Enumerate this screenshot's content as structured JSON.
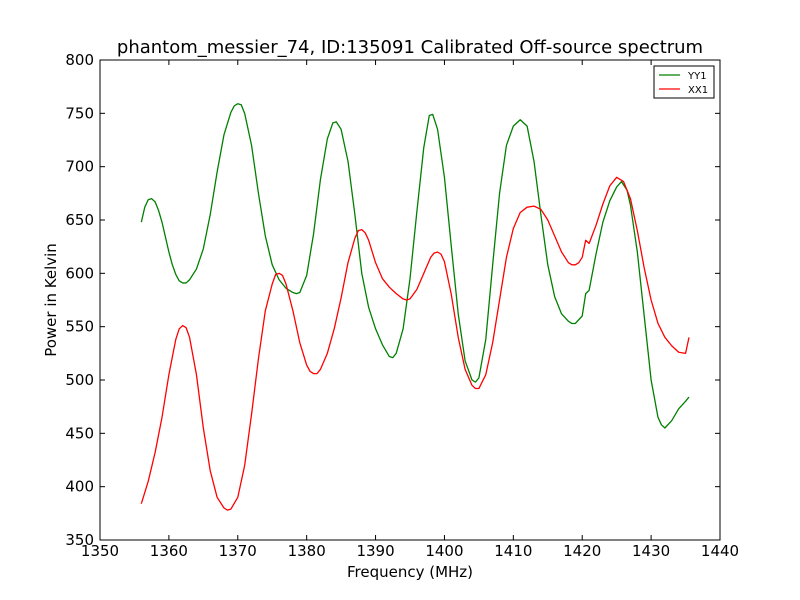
{
  "chart_data": {
    "type": "line",
    "title": "phantom_messier_74, ID:135091 Calibrated Off-source spectrum",
    "xlabel": "Frequency (MHz)",
    "ylabel": "Power in Kelvin",
    "xlim": [
      1350,
      1440
    ],
    "ylim": [
      350,
      800
    ],
    "xticks": [
      1350,
      1360,
      1370,
      1380,
      1390,
      1400,
      1410,
      1420,
      1430,
      1440
    ],
    "yticks": [
      350,
      400,
      450,
      500,
      550,
      600,
      650,
      700,
      750,
      800
    ],
    "grid": false,
    "legend_position": "top-right",
    "series": [
      {
        "name": "YY1",
        "color": "#008000",
        "points": [
          [
            1356.0,
            648
          ],
          [
            1356.5,
            662
          ],
          [
            1357.0,
            669
          ],
          [
            1357.5,
            670
          ],
          [
            1358.0,
            667
          ],
          [
            1358.5,
            659
          ],
          [
            1359.0,
            648
          ],
          [
            1359.5,
            634
          ],
          [
            1360.0,
            620
          ],
          [
            1360.5,
            608
          ],
          [
            1361.0,
            599
          ],
          [
            1361.5,
            593
          ],
          [
            1362.0,
            591
          ],
          [
            1362.5,
            591
          ],
          [
            1363.0,
            594
          ],
          [
            1364.0,
            604
          ],
          [
            1365.0,
            623
          ],
          [
            1366.0,
            655
          ],
          [
            1367.0,
            695
          ],
          [
            1368.0,
            730
          ],
          [
            1369.0,
            751
          ],
          [
            1369.5,
            757
          ],
          [
            1370.0,
            759
          ],
          [
            1370.5,
            758
          ],
          [
            1371.0,
            750
          ],
          [
            1372.0,
            720
          ],
          [
            1373.0,
            675
          ],
          [
            1374.0,
            635
          ],
          [
            1375.0,
            608
          ],
          [
            1376.0,
            594
          ],
          [
            1377.0,
            586
          ],
          [
            1378.0,
            582
          ],
          [
            1378.5,
            581
          ],
          [
            1379.0,
            582
          ],
          [
            1380.0,
            598
          ],
          [
            1381.0,
            637
          ],
          [
            1382.0,
            688
          ],
          [
            1383.0,
            726
          ],
          [
            1383.8,
            741
          ],
          [
            1384.3,
            742
          ],
          [
            1385.0,
            735
          ],
          [
            1386.0,
            705
          ],
          [
            1387.0,
            655
          ],
          [
            1388.0,
            600
          ],
          [
            1389.0,
            568
          ],
          [
            1390.0,
            548
          ],
          [
            1391.0,
            533
          ],
          [
            1392.0,
            522
          ],
          [
            1392.5,
            521
          ],
          [
            1393.0,
            525
          ],
          [
            1394.0,
            548
          ],
          [
            1395.0,
            595
          ],
          [
            1396.0,
            658
          ],
          [
            1397.0,
            718
          ],
          [
            1397.8,
            748
          ],
          [
            1398.3,
            749
          ],
          [
            1399.0,
            735
          ],
          [
            1400.0,
            690
          ],
          [
            1401.0,
            625
          ],
          [
            1402.0,
            562
          ],
          [
            1403.0,
            518
          ],
          [
            1404.0,
            500
          ],
          [
            1404.5,
            498
          ],
          [
            1405.0,
            502
          ],
          [
            1406.0,
            538
          ],
          [
            1407.0,
            608
          ],
          [
            1408.0,
            675
          ],
          [
            1409.0,
            720
          ],
          [
            1410.0,
            738
          ],
          [
            1411.0,
            744
          ],
          [
            1412.0,
            738
          ],
          [
            1413.0,
            705
          ],
          [
            1414.0,
            655
          ],
          [
            1415.0,
            608
          ],
          [
            1416.0,
            578
          ],
          [
            1417.0,
            562
          ],
          [
            1418.0,
            555
          ],
          [
            1418.5,
            553
          ],
          [
            1419.0,
            553
          ],
          [
            1420.0,
            560
          ],
          [
            1420.5,
            581
          ],
          [
            1421.0,
            584
          ],
          [
            1422.0,
            618
          ],
          [
            1423.0,
            648
          ],
          [
            1424.0,
            668
          ],
          [
            1425.0,
            681
          ],
          [
            1425.7,
            686
          ],
          [
            1426.5,
            678
          ],
          [
            1427.0,
            664
          ],
          [
            1428.0,
            620
          ],
          [
            1429.0,
            560
          ],
          [
            1430.0,
            500
          ],
          [
            1431.0,
            465
          ],
          [
            1431.5,
            458
          ],
          [
            1432.0,
            455
          ],
          [
            1433.0,
            462
          ],
          [
            1434.0,
            473
          ],
          [
            1435.0,
            480
          ],
          [
            1435.5,
            484
          ]
        ]
      },
      {
        "name": "XX1",
        "color": "#ff0000",
        "points": [
          [
            1356.0,
            384
          ],
          [
            1357.0,
            405
          ],
          [
            1358.0,
            432
          ],
          [
            1359.0,
            465
          ],
          [
            1360.0,
            505
          ],
          [
            1361.0,
            538
          ],
          [
            1361.5,
            548
          ],
          [
            1362.0,
            551
          ],
          [
            1362.5,
            549
          ],
          [
            1363.0,
            540
          ],
          [
            1364.0,
            505
          ],
          [
            1365.0,
            455
          ],
          [
            1366.0,
            415
          ],
          [
            1367.0,
            390
          ],
          [
            1368.0,
            380
          ],
          [
            1368.5,
            378
          ],
          [
            1369.0,
            379
          ],
          [
            1370.0,
            390
          ],
          [
            1371.0,
            420
          ],
          [
            1372.0,
            468
          ],
          [
            1373.0,
            520
          ],
          [
            1374.0,
            565
          ],
          [
            1375.0,
            590
          ],
          [
            1375.5,
            599
          ],
          [
            1376.0,
            600
          ],
          [
            1376.5,
            598
          ],
          [
            1377.0,
            590
          ],
          [
            1378.0,
            565
          ],
          [
            1379.0,
            535
          ],
          [
            1380.0,
            514
          ],
          [
            1380.5,
            508
          ],
          [
            1381.0,
            506
          ],
          [
            1381.5,
            506
          ],
          [
            1382.0,
            510
          ],
          [
            1383.0,
            525
          ],
          [
            1384.0,
            548
          ],
          [
            1385.0,
            577
          ],
          [
            1386.0,
            610
          ],
          [
            1387.0,
            633
          ],
          [
            1387.5,
            640
          ],
          [
            1388.0,
            641
          ],
          [
            1388.5,
            638
          ],
          [
            1389.0,
            631
          ],
          [
            1390.0,
            610
          ],
          [
            1391.0,
            595
          ],
          [
            1392.0,
            587
          ],
          [
            1393.0,
            581
          ],
          [
            1394.0,
            576
          ],
          [
            1394.5,
            575
          ],
          [
            1395.0,
            576
          ],
          [
            1396.0,
            585
          ],
          [
            1397.0,
            600
          ],
          [
            1398.0,
            615
          ],
          [
            1398.5,
            619
          ],
          [
            1399.0,
            620
          ],
          [
            1399.5,
            618
          ],
          [
            1400.0,
            611
          ],
          [
            1401.0,
            580
          ],
          [
            1402.0,
            540
          ],
          [
            1403.0,
            510
          ],
          [
            1404.0,
            495
          ],
          [
            1404.5,
            492
          ],
          [
            1405.0,
            492
          ],
          [
            1406.0,
            505
          ],
          [
            1407.0,
            535
          ],
          [
            1408.0,
            575
          ],
          [
            1409.0,
            615
          ],
          [
            1410.0,
            642
          ],
          [
            1411.0,
            657
          ],
          [
            1412.0,
            662
          ],
          [
            1413.0,
            663
          ],
          [
            1414.0,
            660
          ],
          [
            1415.0,
            650
          ],
          [
            1416.0,
            635
          ],
          [
            1417.0,
            620
          ],
          [
            1418.0,
            610
          ],
          [
            1418.5,
            608
          ],
          [
            1419.0,
            608
          ],
          [
            1419.5,
            610
          ],
          [
            1420.0,
            615
          ],
          [
            1420.5,
            631
          ],
          [
            1421.0,
            628
          ],
          [
            1422.0,
            645
          ],
          [
            1423.0,
            665
          ],
          [
            1424.0,
            682
          ],
          [
            1425.0,
            690
          ],
          [
            1426.0,
            686
          ],
          [
            1427.0,
            670
          ],
          [
            1428.0,
            640
          ],
          [
            1429.0,
            605
          ],
          [
            1430.0,
            575
          ],
          [
            1431.0,
            553
          ],
          [
            1432.0,
            540
          ],
          [
            1433.0,
            532
          ],
          [
            1434.0,
            526
          ],
          [
            1435.0,
            525
          ],
          [
            1435.5,
            540
          ]
        ]
      }
    ]
  }
}
